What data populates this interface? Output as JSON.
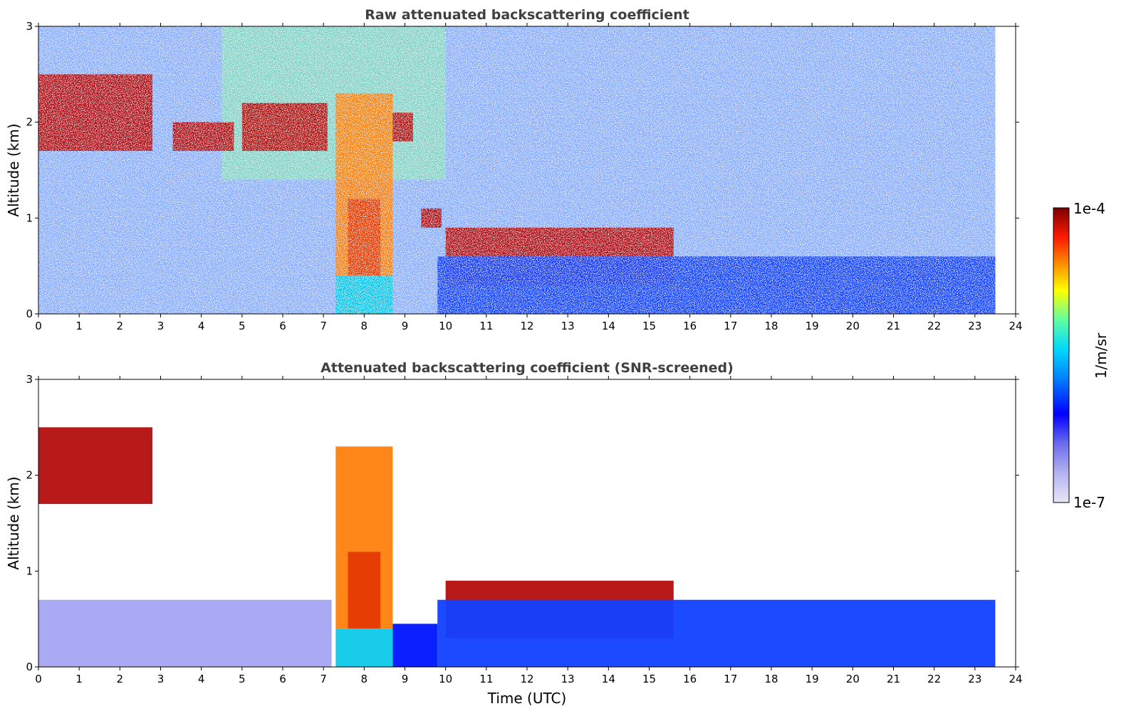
{
  "chart_data": [
    {
      "type": "heatmap",
      "title": "Raw attenuated backscattering coefficient",
      "xlabel": "",
      "ylabel": "Altitude (km)",
      "xlim": [
        0,
        24
      ],
      "ylim": [
        0,
        3
      ],
      "xticks": [
        "0",
        "1",
        "2",
        "3",
        "4",
        "5",
        "6",
        "7",
        "8",
        "9",
        "10",
        "11",
        "12",
        "13",
        "14",
        "15",
        "16",
        "17",
        "18",
        "19",
        "20",
        "21",
        "22",
        "23",
        "24"
      ],
      "yticks": [
        "0",
        "1",
        "2",
        "3"
      ],
      "data_end_hour": 23.5,
      "screened": false,
      "features": [
        {
          "name": "cloud layer",
          "x_start": 0.0,
          "x_end": 2.8,
          "alt_bottom": 1.7,
          "alt_top": 2.5,
          "level": "high"
        },
        {
          "name": "cloud patches",
          "x_start": 3.3,
          "x_end": 4.8,
          "alt_bottom": 1.7,
          "alt_top": 2.0,
          "level": "high"
        },
        {
          "name": "cloud layer",
          "x_start": 5.0,
          "x_end": 7.1,
          "alt_bottom": 1.7,
          "alt_top": 2.2,
          "level": "high"
        },
        {
          "name": "cloud column",
          "x_start": 7.3,
          "x_end": 8.7,
          "alt_bottom": 0.4,
          "alt_top": 2.3,
          "level": "medium-high"
        },
        {
          "name": "cloud",
          "x_start": 8.7,
          "x_end": 9.2,
          "alt_bottom": 1.8,
          "alt_top": 2.1,
          "level": "high"
        },
        {
          "name": "cloud",
          "x_start": 9.4,
          "x_end": 9.9,
          "alt_bottom": 0.9,
          "alt_top": 1.1,
          "level": "high"
        },
        {
          "name": "boundary layer cloud",
          "x_start": 10.0,
          "x_end": 15.6,
          "alt_bottom": 0.3,
          "alt_top": 0.9,
          "level": "high"
        },
        {
          "name": "aerosol layer",
          "x_start": 9.8,
          "x_end": 23.5,
          "alt_bottom": 0.0,
          "alt_top": 0.6,
          "level": "low-medium"
        }
      ]
    },
    {
      "type": "heatmap",
      "title": "Attenuated backscattering coefficient (SNR-screened)",
      "xlabel": "Time (UTC)",
      "ylabel": "Altitude (km)",
      "xlim": [
        0,
        24
      ],
      "ylim": [
        0,
        3
      ],
      "xticks": [
        "0",
        "1",
        "2",
        "3",
        "4",
        "5",
        "6",
        "7",
        "8",
        "9",
        "10",
        "11",
        "12",
        "13",
        "14",
        "15",
        "16",
        "17",
        "18",
        "19",
        "20",
        "21",
        "22",
        "23",
        "24"
      ],
      "yticks": [
        "0",
        "1",
        "2",
        "3"
      ],
      "data_end_hour": 23.5,
      "screened": true,
      "features": [
        {
          "name": "cloud layer",
          "x_start": 0.0,
          "x_end": 2.8,
          "alt_bottom": 1.7,
          "alt_top": 2.5,
          "level": "high"
        },
        {
          "name": "cloud column",
          "x_start": 7.3,
          "x_end": 8.7,
          "alt_bottom": 0.4,
          "alt_top": 2.3,
          "level": "medium-high"
        },
        {
          "name": "boundary layer cloud",
          "x_start": 10.0,
          "x_end": 15.6,
          "alt_bottom": 0.3,
          "alt_top": 0.9,
          "level": "high"
        },
        {
          "name": "aerosol layer",
          "x_start": 9.8,
          "x_end": 23.5,
          "alt_bottom": 0.0,
          "alt_top": 0.7,
          "level": "low-medium"
        }
      ]
    }
  ],
  "colorbar": {
    "max_label": "1e-4",
    "min_label": "1e-7",
    "unit_label": "1/m/sr",
    "colors": [
      "#e6e6f8",
      "#b3b3f0",
      "#6b6bee",
      "#0000ff",
      "#0080ff",
      "#00d8ff",
      "#60ff9f",
      "#ffff00",
      "#ff8000",
      "#ff1a00",
      "#7a0000"
    ]
  }
}
